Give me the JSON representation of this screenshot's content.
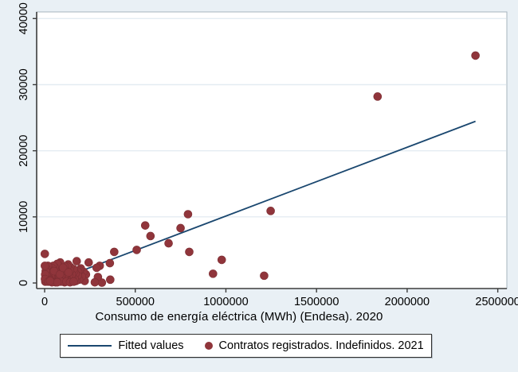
{
  "figure": {
    "background_color": "#e9f0f5",
    "plot_background_color": "#ffffff"
  },
  "chart_data": {
    "type": "scatter",
    "title": "",
    "xlabel": "Consumo de energía eléctrica (MWh) (Endesa). 2020",
    "ylabel": "",
    "xlim": [
      -44000,
      2550000
    ],
    "ylim": [
      -840,
      41000
    ],
    "x_ticks": [
      0,
      500000,
      1000000,
      1500000,
      2000000,
      2500000
    ],
    "x_tick_labels": [
      "0",
      "500000",
      "1000000",
      "1500000",
      "2000000",
      "2500000"
    ],
    "y_ticks": [
      0,
      10000,
      20000,
      30000,
      40000
    ],
    "y_tick_labels": [
      "0",
      "10000",
      "20000",
      "30000",
      "40000"
    ],
    "grid": "horizontal-only",
    "legend_position": "bottom",
    "colors": {
      "point_fill": "#90353b",
      "fit_line": "#1a476f",
      "gridline": "#e4ecf2",
      "axis_line": "#3c3c3c",
      "frame_line": "#a7b4be",
      "tick_text": "#000000"
    },
    "legend": {
      "entries": [
        {
          "swatch": "line",
          "label": "Fitted values"
        },
        {
          "swatch": "dot",
          "label": "Contratos registrados. Indefinidos. 2021"
        }
      ]
    },
    "series": [
      {
        "name": "Fitted values",
        "type": "line",
        "x": [
          0,
          2377000
        ],
        "y": [
          -280,
          24450
        ]
      },
      {
        "name": "Contratos registrados. Indefinidos. 2021",
        "type": "points",
        "points": [
          [
            2377000,
            34400
          ],
          [
            1837000,
            28200
          ],
          [
            1247000,
            10900
          ],
          [
            1211000,
            1100
          ],
          [
            977000,
            3500
          ],
          [
            929000,
            1400
          ],
          [
            791000,
            10400
          ],
          [
            798000,
            4700
          ],
          [
            750000,
            8300
          ],
          [
            684000,
            6000
          ],
          [
            584000,
            7100
          ],
          [
            555000,
            8700
          ],
          [
            508000,
            5000
          ],
          [
            384000,
            4700
          ],
          [
            360000,
            3000
          ],
          [
            362000,
            500
          ],
          [
            316000,
            50
          ],
          [
            304000,
            2600
          ],
          [
            294000,
            900
          ],
          [
            287000,
            2300
          ],
          [
            277000,
            100
          ],
          [
            243000,
            3100
          ],
          [
            228000,
            1300
          ],
          [
            221000,
            300
          ],
          [
            215000,
            1700
          ],
          [
            205000,
            1000
          ],
          [
            200000,
            2200
          ],
          [
            193000,
            1900
          ],
          [
            190000,
            500
          ],
          [
            185000,
            1700
          ],
          [
            183000,
            1100
          ],
          [
            177000,
            3300
          ],
          [
            173000,
            300
          ],
          [
            170000,
            1400
          ],
          [
            165000,
            600
          ],
          [
            163000,
            1800
          ],
          [
            160000,
            2100
          ],
          [
            152000,
            700
          ],
          [
            150000,
            1300
          ],
          [
            145000,
            300
          ],
          [
            142000,
            2400
          ],
          [
            140000,
            1900
          ],
          [
            135000,
            1100
          ],
          [
            130000,
            2800
          ],
          [
            128000,
            400
          ],
          [
            125000,
            2500
          ],
          [
            120000,
            1800
          ],
          [
            118000,
            1200
          ],
          [
            115000,
            600
          ],
          [
            110000,
            2500
          ],
          [
            108000,
            800
          ],
          [
            105000,
            1500
          ],
          [
            100000,
            400
          ],
          [
            98000,
            1700
          ],
          [
            95000,
            2100
          ],
          [
            90000,
            1000
          ],
          [
            88000,
            2300
          ],
          [
            86000,
            3100
          ],
          [
            80000,
            700
          ],
          [
            78000,
            1500
          ],
          [
            75000,
            2700
          ],
          [
            70000,
            2900
          ],
          [
            68000,
            400
          ],
          [
            65000,
            1600
          ],
          [
            60000,
            500
          ],
          [
            58000,
            1900
          ],
          [
            55000,
            2400
          ],
          [
            50000,
            1200
          ],
          [
            48000,
            2600
          ],
          [
            45000,
            300
          ],
          [
            43000,
            2200
          ],
          [
            40000,
            1000
          ],
          [
            38000,
            900
          ],
          [
            35000,
            1400
          ],
          [
            33000,
            1000
          ],
          [
            30000,
            2000
          ],
          [
            28000,
            600
          ],
          [
            25000,
            400
          ],
          [
            22000,
            1500
          ],
          [
            20000,
            800
          ],
          [
            18000,
            2600
          ],
          [
            15000,
            800
          ],
          [
            12000,
            300
          ],
          [
            10000,
            1200
          ],
          [
            9000,
            2200
          ],
          [
            8000,
            400
          ],
          [
            6000,
            1800
          ],
          [
            5000,
            900
          ],
          [
            4000,
            200
          ],
          [
            3000,
            1300
          ],
          [
            2000,
            600
          ],
          [
            1500,
            2600
          ],
          [
            1000,
            4400
          ],
          [
            110000,
            100
          ],
          [
            60000,
            100
          ],
          [
            90000,
            200
          ],
          [
            40000,
            100
          ],
          [
            20000,
            200
          ],
          [
            70000,
            100
          ],
          [
            120000,
            200
          ],
          [
            140000,
            100
          ],
          [
            160000,
            200
          ],
          [
            30000,
            300
          ],
          [
            52000,
            1800
          ],
          [
            84000,
            1300
          ],
          [
            102000,
            2300
          ],
          [
            132000,
            1600
          ]
        ]
      }
    ]
  }
}
